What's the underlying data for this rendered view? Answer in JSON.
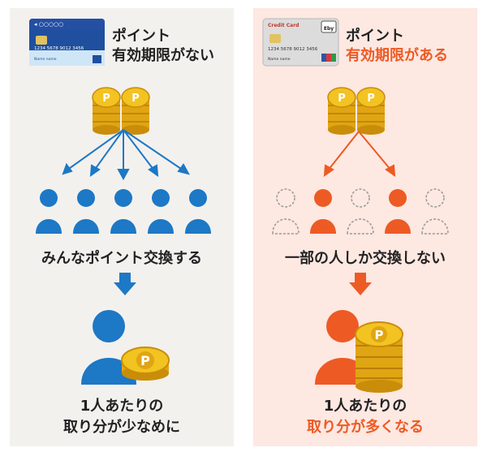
{
  "colors": {
    "blue": "#1d78c6",
    "orange": "#ee5a24",
    "left_bg": "#f3f1ee",
    "right_bg": "#fde8e2",
    "coin": "#f2c321"
  },
  "left": {
    "card": {
      "top_marks": "◂ ○○○○○",
      "number": "1234  5678  9012  3456",
      "name": "Name name"
    },
    "title_line1": "ポイント",
    "title_line2": "有効期限がない",
    "mid_label": "みんなポイント交換する",
    "bottom_line1": "1人あたりの",
    "bottom_line2": "取り分が少なめに"
  },
  "right": {
    "card": {
      "brand": "Credit Card",
      "logo": "Eby",
      "number": "1234  5678  9012  3456",
      "name": "Name name"
    },
    "title_line1": "ポイント",
    "title_line2": "有効期限がある",
    "mid_label": "一部の人しか交換しない",
    "bottom_line1": "1人あたりの",
    "bottom_line2": "取り分が多くなる"
  },
  "icons": [
    "coin-stack-icon",
    "person-icon",
    "down-arrow-icon",
    "credit-card-icon"
  ]
}
